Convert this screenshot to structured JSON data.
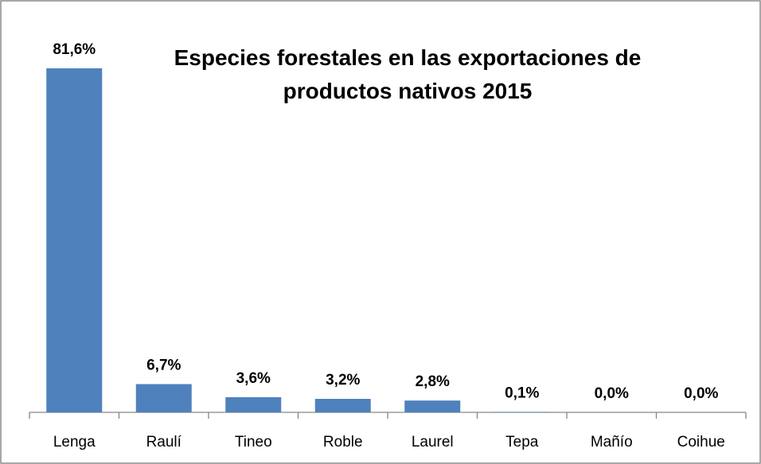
{
  "chart_data": {
    "type": "bar",
    "title": "Especies forestales en las exportaciones de productos nativos 2015",
    "categories": [
      "Lenga",
      "Raulí",
      "Tineo",
      "Roble",
      "Laurel",
      "Tepa",
      "Mañío",
      "Coihue"
    ],
    "values": [
      81.6,
      6.7,
      3.6,
      3.2,
      2.8,
      0.1,
      0.0,
      0.0
    ],
    "value_labels": [
      "81,6%",
      "6,7%",
      "3,6%",
      "3,2%",
      "2,8%",
      "0,1%",
      "0,0%",
      "0,0%"
    ],
    "color": "#4f81bd"
  }
}
